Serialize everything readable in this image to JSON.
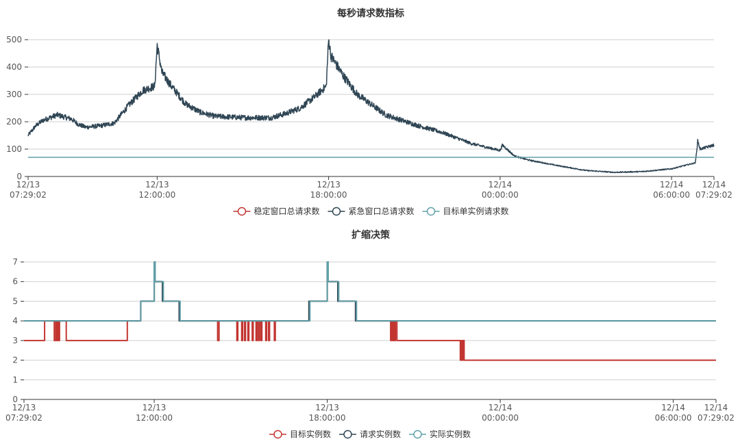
{
  "chart_data": [
    {
      "type": "line",
      "title": "每秒请求数指标",
      "x_ticks": [
        {
          "date": "12/13",
          "time": "07:29:02"
        },
        {
          "date": "12/13",
          "time": "12:00:00"
        },
        {
          "date": "12/13",
          "time": "18:00:00"
        },
        {
          "date": "12/14",
          "time": "00:00:00"
        },
        {
          "date": "12/14",
          "time": "06:00:00"
        },
        {
          "date": "12/14",
          "time": "07:29:02"
        }
      ],
      "xlim": [
        "12/13 07:29:02",
        "12/14 07:29:02"
      ],
      "y_ticks": [
        "0",
        "100",
        "200",
        "300",
        "400",
        "500"
      ],
      "ylim": [
        0,
        500
      ],
      "grid": true,
      "legend_position": "bottom",
      "series": [
        {
          "name": "稳定窗口总请求数",
          "color": "#c23531",
          "points": []
        },
        {
          "name": "紧急窗口总请求数",
          "color": "#2f4554",
          "points": [
            [
              "12/13 07:29",
              150
            ],
            [
              "12/13 07:45",
              185
            ],
            [
              "12/13 08:00",
              205
            ],
            [
              "12/13 08:30",
              225
            ],
            [
              "12/13 09:00",
              210
            ],
            [
              "12/13 09:15",
              190
            ],
            [
              "12/13 09:30",
              180
            ],
            [
              "12/13 10:00",
              185
            ],
            [
              "12/13 10:30",
              195
            ],
            [
              "12/13 11:00",
              260
            ],
            [
              "12/13 11:30",
              315
            ],
            [
              "12/13 11:55",
              330
            ],
            [
              "12/13 12:00",
              480
            ],
            [
              "12/13 12:10",
              380
            ],
            [
              "12/13 12:30",
              330
            ],
            [
              "12/13 13:00",
              265
            ],
            [
              "12/13 13:30",
              235
            ],
            [
              "12/13 14:00",
              220
            ],
            [
              "12/13 15:00",
              215
            ],
            [
              "12/13 16:00",
              215
            ],
            [
              "12/13 16:30",
              230
            ],
            [
              "12/13 17:00",
              250
            ],
            [
              "12/13 17:30",
              290
            ],
            [
              "12/13 17:55",
              330
            ],
            [
              "12/13 18:00",
              500
            ],
            [
              "12/13 18:05",
              440
            ],
            [
              "12/13 18:30",
              370
            ],
            [
              "12/13 19:00",
              300
            ],
            [
              "12/13 20:00",
              225
            ],
            [
              "12/13 21:00",
              190
            ],
            [
              "12/13 22:00",
              160
            ],
            [
              "12/13 23:00",
              120
            ],
            [
              "12/14 00:00",
              95
            ],
            [
              "12/14 00:05",
              115
            ],
            [
              "12/14 00:30",
              75
            ],
            [
              "12/14 01:00",
              60
            ],
            [
              "12/14 02:00",
              40
            ],
            [
              "12/14 03:00",
              22
            ],
            [
              "12/14 04:00",
              15
            ],
            [
              "12/14 05:00",
              18
            ],
            [
              "12/14 06:00",
              28
            ],
            [
              "12/14 06:50",
              50
            ],
            [
              "12/14 06:55",
              130
            ],
            [
              "12/14 07:00",
              100
            ],
            [
              "12/14 07:29",
              115
            ]
          ]
        },
        {
          "name": "目标单实例请求数",
          "color": "#61a0a8",
          "points": [
            [
              "12/13 07:29",
              70
            ],
            [
              "12/14 07:29",
              70
            ]
          ]
        }
      ]
    },
    {
      "type": "line",
      "step": true,
      "title": "扩缩决策",
      "x_ticks": [
        {
          "date": "12/13",
          "time": "07:29:02"
        },
        {
          "date": "12/13",
          "time": "12:00:00"
        },
        {
          "date": "12/13",
          "time": "18:00:00"
        },
        {
          "date": "12/14",
          "time": "00:00:00"
        },
        {
          "date": "12/14",
          "time": "06:00:00"
        },
        {
          "date": "12/14",
          "time": "07:29:02"
        }
      ],
      "xlim": [
        "12/13 07:29:02",
        "12/14 07:29:02"
      ],
      "y_ticks": [
        "0",
        "1",
        "2",
        "3",
        "4",
        "5",
        "6",
        "7"
      ],
      "ylim": [
        0,
        7
      ],
      "grid": true,
      "legend_position": "bottom",
      "series": [
        {
          "name": "目标实例数",
          "color": "#c23531",
          "points": [
            [
              "12/13 07:29",
              3
            ],
            [
              "12/13 08:10",
              3
            ],
            [
              "12/13 08:12",
              4
            ],
            [
              "12/13 08:30",
              4
            ],
            [
              "12/13 08:32",
              3
            ],
            [
              "12/13 08:35",
              4
            ],
            [
              "12/13 08:37",
              3
            ],
            [
              "12/13 08:39",
              4
            ],
            [
              "12/13 08:41",
              3
            ],
            [
              "12/13 08:43",
              4
            ],
            [
              "12/13 08:55",
              4
            ],
            [
              "12/13 08:57",
              3
            ],
            [
              "12/13 11:02",
              3
            ],
            [
              "12/13 11:04",
              4
            ],
            [
              "12/13 11:30",
              4
            ],
            [
              "12/13 11:32",
              5
            ],
            [
              "12/13 11:58",
              5
            ],
            [
              "12/13 12:00",
              7
            ],
            [
              "12/13 12:02",
              6
            ],
            [
              "12/13 12:15",
              6
            ],
            [
              "12/13 12:17",
              5
            ],
            [
              "12/13 12:50",
              5
            ],
            [
              "12/13 12:52",
              4
            ],
            [
              "12/13 14:10",
              4
            ],
            [
              "12/13 14:12",
              3
            ],
            [
              "12/13 14:15",
              4
            ],
            [
              "12/13 14:50",
              4
            ],
            [
              "12/13 14:52",
              3
            ],
            [
              "12/13 14:54",
              4
            ],
            [
              "12/13 15:00",
              4
            ],
            [
              "12/13 15:02",
              3
            ],
            [
              "12/13 15:04",
              4
            ],
            [
              "12/13 15:08",
              3
            ],
            [
              "12/13 15:10",
              4
            ],
            [
              "12/13 15:15",
              3
            ],
            [
              "12/13 15:17",
              4
            ],
            [
              "12/13 15:24",
              3
            ],
            [
              "12/13 15:26",
              4
            ],
            [
              "12/13 15:32",
              3
            ],
            [
              "12/13 15:34",
              4
            ],
            [
              "12/13 15:37",
              3
            ],
            [
              "12/13 15:39",
              4
            ],
            [
              "12/13 15:42",
              3
            ],
            [
              "12/13 15:44",
              4
            ],
            [
              "12/13 15:52",
              3
            ],
            [
              "12/13 15:54",
              4
            ],
            [
              "12/13 15:58",
              3
            ],
            [
              "12/13 16:00",
              4
            ],
            [
              "12/13 16:10",
              3
            ],
            [
              "12/13 16:12",
              4
            ],
            [
              "12/13 17:20",
              4
            ],
            [
              "12/13 17:22",
              5
            ],
            [
              "12/13 17:58",
              5
            ],
            [
              "12/13 18:00",
              7
            ],
            [
              "12/13 18:02",
              6
            ],
            [
              "12/13 18:20",
              6
            ],
            [
              "12/13 18:22",
              5
            ],
            [
              "12/13 18:57",
              5
            ],
            [
              "12/13 18:59",
              4
            ],
            [
              "12/13 20:10",
              4
            ],
            [
              "12/13 20:12",
              3
            ],
            [
              "12/13 20:14",
              4
            ],
            [
              "12/13 20:16",
              3
            ],
            [
              "12/13 20:18",
              4
            ],
            [
              "12/13 20:20",
              3
            ],
            [
              "12/13 20:22",
              4
            ],
            [
              "12/13 20:25",
              3
            ],
            [
              "12/13 22:35",
              3
            ],
            [
              "12/13 22:37",
              2
            ],
            [
              "12/13 22:39",
              3
            ],
            [
              "12/13 22:41",
              2
            ],
            [
              "12/13 22:43",
              3
            ],
            [
              "12/13 22:45",
              2
            ],
            [
              "12/14 07:29",
              2
            ]
          ]
        },
        {
          "name": "请求实例数",
          "color": "#2f4554",
          "points": [
            [
              "12/13 07:29",
              4
            ],
            [
              "12/13 11:30",
              4
            ],
            [
              "12/13 11:32",
              5
            ],
            [
              "12/13 11:58",
              5
            ],
            [
              "12/13 12:00",
              7
            ],
            [
              "12/13 12:02",
              6
            ],
            [
              "12/13 12:15",
              6
            ],
            [
              "12/13 12:17",
              5
            ],
            [
              "12/13 12:50",
              5
            ],
            [
              "12/13 12:52",
              4
            ],
            [
              "12/13 17:20",
              4
            ],
            [
              "12/13 17:22",
              5
            ],
            [
              "12/13 17:58",
              5
            ],
            [
              "12/13 18:00",
              7
            ],
            [
              "12/13 18:02",
              6
            ],
            [
              "12/13 18:20",
              6
            ],
            [
              "12/13 18:22",
              5
            ],
            [
              "12/13 18:57",
              5
            ],
            [
              "12/13 18:59",
              4
            ],
            [
              "12/14 07:29",
              4
            ]
          ]
        },
        {
          "name": "实际实例数",
          "color": "#61a0a8",
          "points": [
            [
              "12/13 07:29",
              4
            ],
            [
              "12/13 11:30",
              4
            ],
            [
              "12/13 11:32",
              5
            ],
            [
              "12/13 11:58",
              5
            ],
            [
              "12/13 12:00",
              7
            ],
            [
              "12/13 12:02",
              6
            ],
            [
              "12/13 12:17",
              6
            ],
            [
              "12/13 12:19",
              5
            ],
            [
              "12/13 12:52",
              5
            ],
            [
              "12/13 12:54",
              4
            ],
            [
              "12/13 17:22",
              4
            ],
            [
              "12/13 17:24",
              5
            ],
            [
              "12/13 17:58",
              5
            ],
            [
              "12/13 18:00",
              7
            ],
            [
              "12/13 18:02",
              6
            ],
            [
              "12/13 18:22",
              6
            ],
            [
              "12/13 18:24",
              5
            ],
            [
              "12/13 18:59",
              5
            ],
            [
              "12/13 19:01",
              4
            ],
            [
              "12/14 07:29",
              4
            ]
          ]
        }
      ]
    }
  ]
}
